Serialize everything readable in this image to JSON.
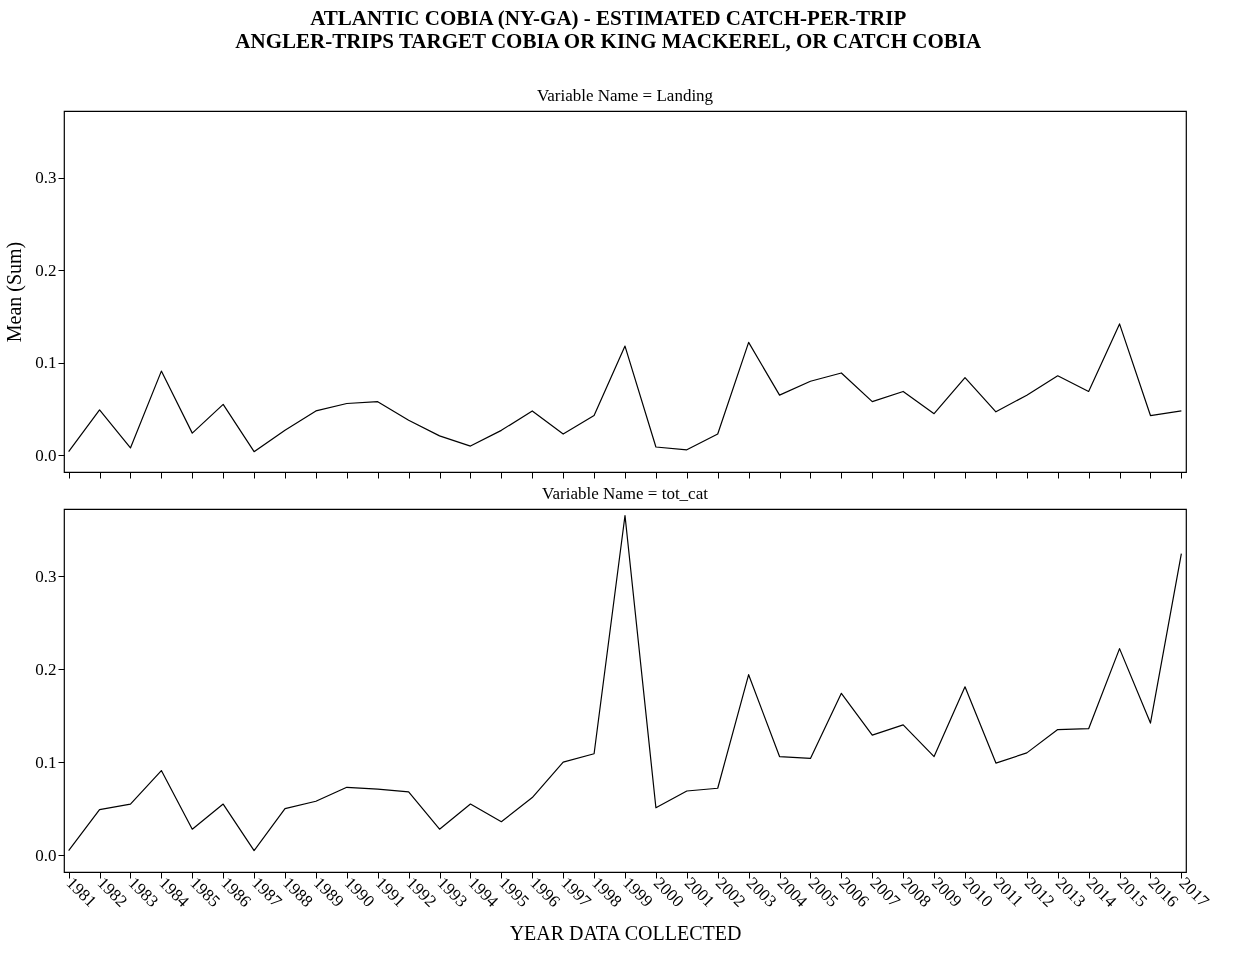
{
  "chart_data": [
    {
      "type": "line",
      "title": "ATLANTIC COBIA (NY-GA) - ESTIMATED CATCH-PER-TRIP",
      "subtitle": "ANGLER-TRIPS TARGET COBIA OR KING MACKEREL, OR CATCH COBIA",
      "annotations": [
        "Variable Name = Landing"
      ],
      "ylabel": "Mean (Sum)",
      "tick_labels": "y",
      "categories": [
        "1981",
        "1982",
        "1983",
        "1984",
        "1985",
        "1986",
        "1987",
        "1988",
        "1989",
        "1990",
        "1991",
        "1992",
        "1993",
        "1994",
        "1995",
        "1996",
        "1997",
        "1998",
        "1999",
        "2000",
        "2001",
        "2002",
        "2003",
        "2004",
        "2005",
        "2006",
        "2007",
        "2008",
        "2009",
        "2010",
        "2011",
        "2012",
        "2013",
        "2014",
        "2015",
        "2016",
        "2017"
      ],
      "series": [
        {
          "color": "#000000",
          "values": [
            0.004,
            0.049,
            0.008,
            0.091,
            0.024,
            0.055,
            0.004,
            0.027,
            0.048,
            0.056,
            0.058,
            0.038,
            0.021,
            0.01,
            0.027,
            0.048,
            0.023,
            0.043,
            0.118,
            0.009,
            0.006,
            0.023,
            0.122,
            0.065,
            0.08,
            0.089,
            0.058,
            0.069,
            0.045,
            0.084,
            0.047,
            0.065,
            0.086,
            0.069,
            0.142,
            0.043,
            0.048
          ]
        }
      ],
      "ylim": [
        -0.018,
        0.372
      ],
      "yticks": [
        {
          "value": 0,
          "label": "0.0"
        },
        {
          "value": 0.1,
          "label": "0.1"
        },
        {
          "value": 0.2,
          "label": "0.2"
        },
        {
          "value": 0.3,
          "label": "0.3"
        }
      ]
    },
    {
      "type": "line",
      "annotations": [
        "Variable Name = tot_cat"
      ],
      "xlabel": "YEAR DATA COLLECTED",
      "categories": [
        "1981",
        "1982",
        "1983",
        "1984",
        "1985",
        "1986",
        "1987",
        "1988",
        "1989",
        "1990",
        "1991",
        "1992",
        "1993",
        "1994",
        "1995",
        "1996",
        "1997",
        "1998",
        "1999",
        "2000",
        "2001",
        "2002",
        "2003",
        "2004",
        "2005",
        "2006",
        "2007",
        "2008",
        "2009",
        "2010",
        "2011",
        "2012",
        "2013",
        "2014",
        "2015",
        "2016",
        "2017"
      ],
      "series": [
        {
          "color": "#000000",
          "values": [
            0.005,
            0.049,
            0.055,
            0.091,
            0.028,
            0.055,
            0.005,
            0.05,
            0.058,
            0.073,
            0.071,
            0.068,
            0.028,
            0.055,
            0.036,
            0.062,
            0.1,
            0.109,
            0.365,
            0.051,
            0.069,
            0.072,
            0.194,
            0.106,
            0.104,
            0.174,
            0.129,
            0.14,
            0.106,
            0.181,
            0.099,
            0.11,
            0.135,
            0.136,
            0.222,
            0.142,
            0.324
          ]
        }
      ],
      "ylim": [
        -0.018,
        0.372
      ],
      "yticks": [
        {
          "value": 0,
          "label": "0.0"
        },
        {
          "value": 0.1,
          "label": "0.1"
        },
        {
          "value": 0.2,
          "label": "0.2"
        },
        {
          "value": 0.3,
          "label": "0.3"
        }
      ]
    }
  ]
}
